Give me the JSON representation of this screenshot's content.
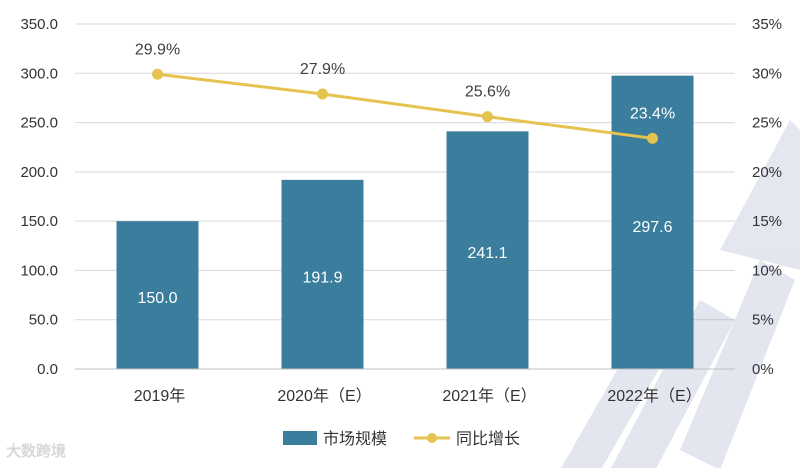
{
  "chart_data": {
    "type": "bar+line",
    "title": "",
    "categories": [
      "2019年",
      "2020年（E）",
      "2021年（E）",
      "2022年（E）"
    ],
    "series": [
      {
        "name": "市场规模",
        "type": "bar",
        "axis": "left",
        "values": [
          150.0,
          191.9,
          241.1,
          297.6
        ],
        "labels": [
          "150.0",
          "191.9",
          "241.1",
          "297.6"
        ],
        "color": "#3a7d9c"
      },
      {
        "name": "同比增长",
        "type": "line",
        "axis": "right",
        "values": [
          29.9,
          27.9,
          25.6,
          23.4
        ],
        "labels": [
          "29.9%",
          "27.9%",
          "25.6%",
          "23.4%"
        ],
        "color": "#e6c24e"
      }
    ],
    "y_left": {
      "range": [
        0,
        350
      ],
      "ticks": [
        "0.0",
        "50.0",
        "100.0",
        "150.0",
        "200.0",
        "250.0",
        "300.0",
        "350.0"
      ],
      "values": [
        0,
        50,
        100,
        150,
        200,
        250,
        300,
        350
      ]
    },
    "y_right": {
      "range": [
        0,
        35
      ],
      "ticks": [
        "0%",
        "5%",
        "10%",
        "15%",
        "20%",
        "25%",
        "30%",
        "35%"
      ],
      "values": [
        0,
        5,
        10,
        15,
        20,
        25,
        30,
        35
      ]
    },
    "grid": true,
    "legend_position": "bottom"
  },
  "watermark": {
    "source_text": "大数跨境"
  },
  "colors": {
    "grid": "#d9d9d9",
    "axis_text": "#333333",
    "bar_label": "#ffffff",
    "line_label": "#404040"
  }
}
